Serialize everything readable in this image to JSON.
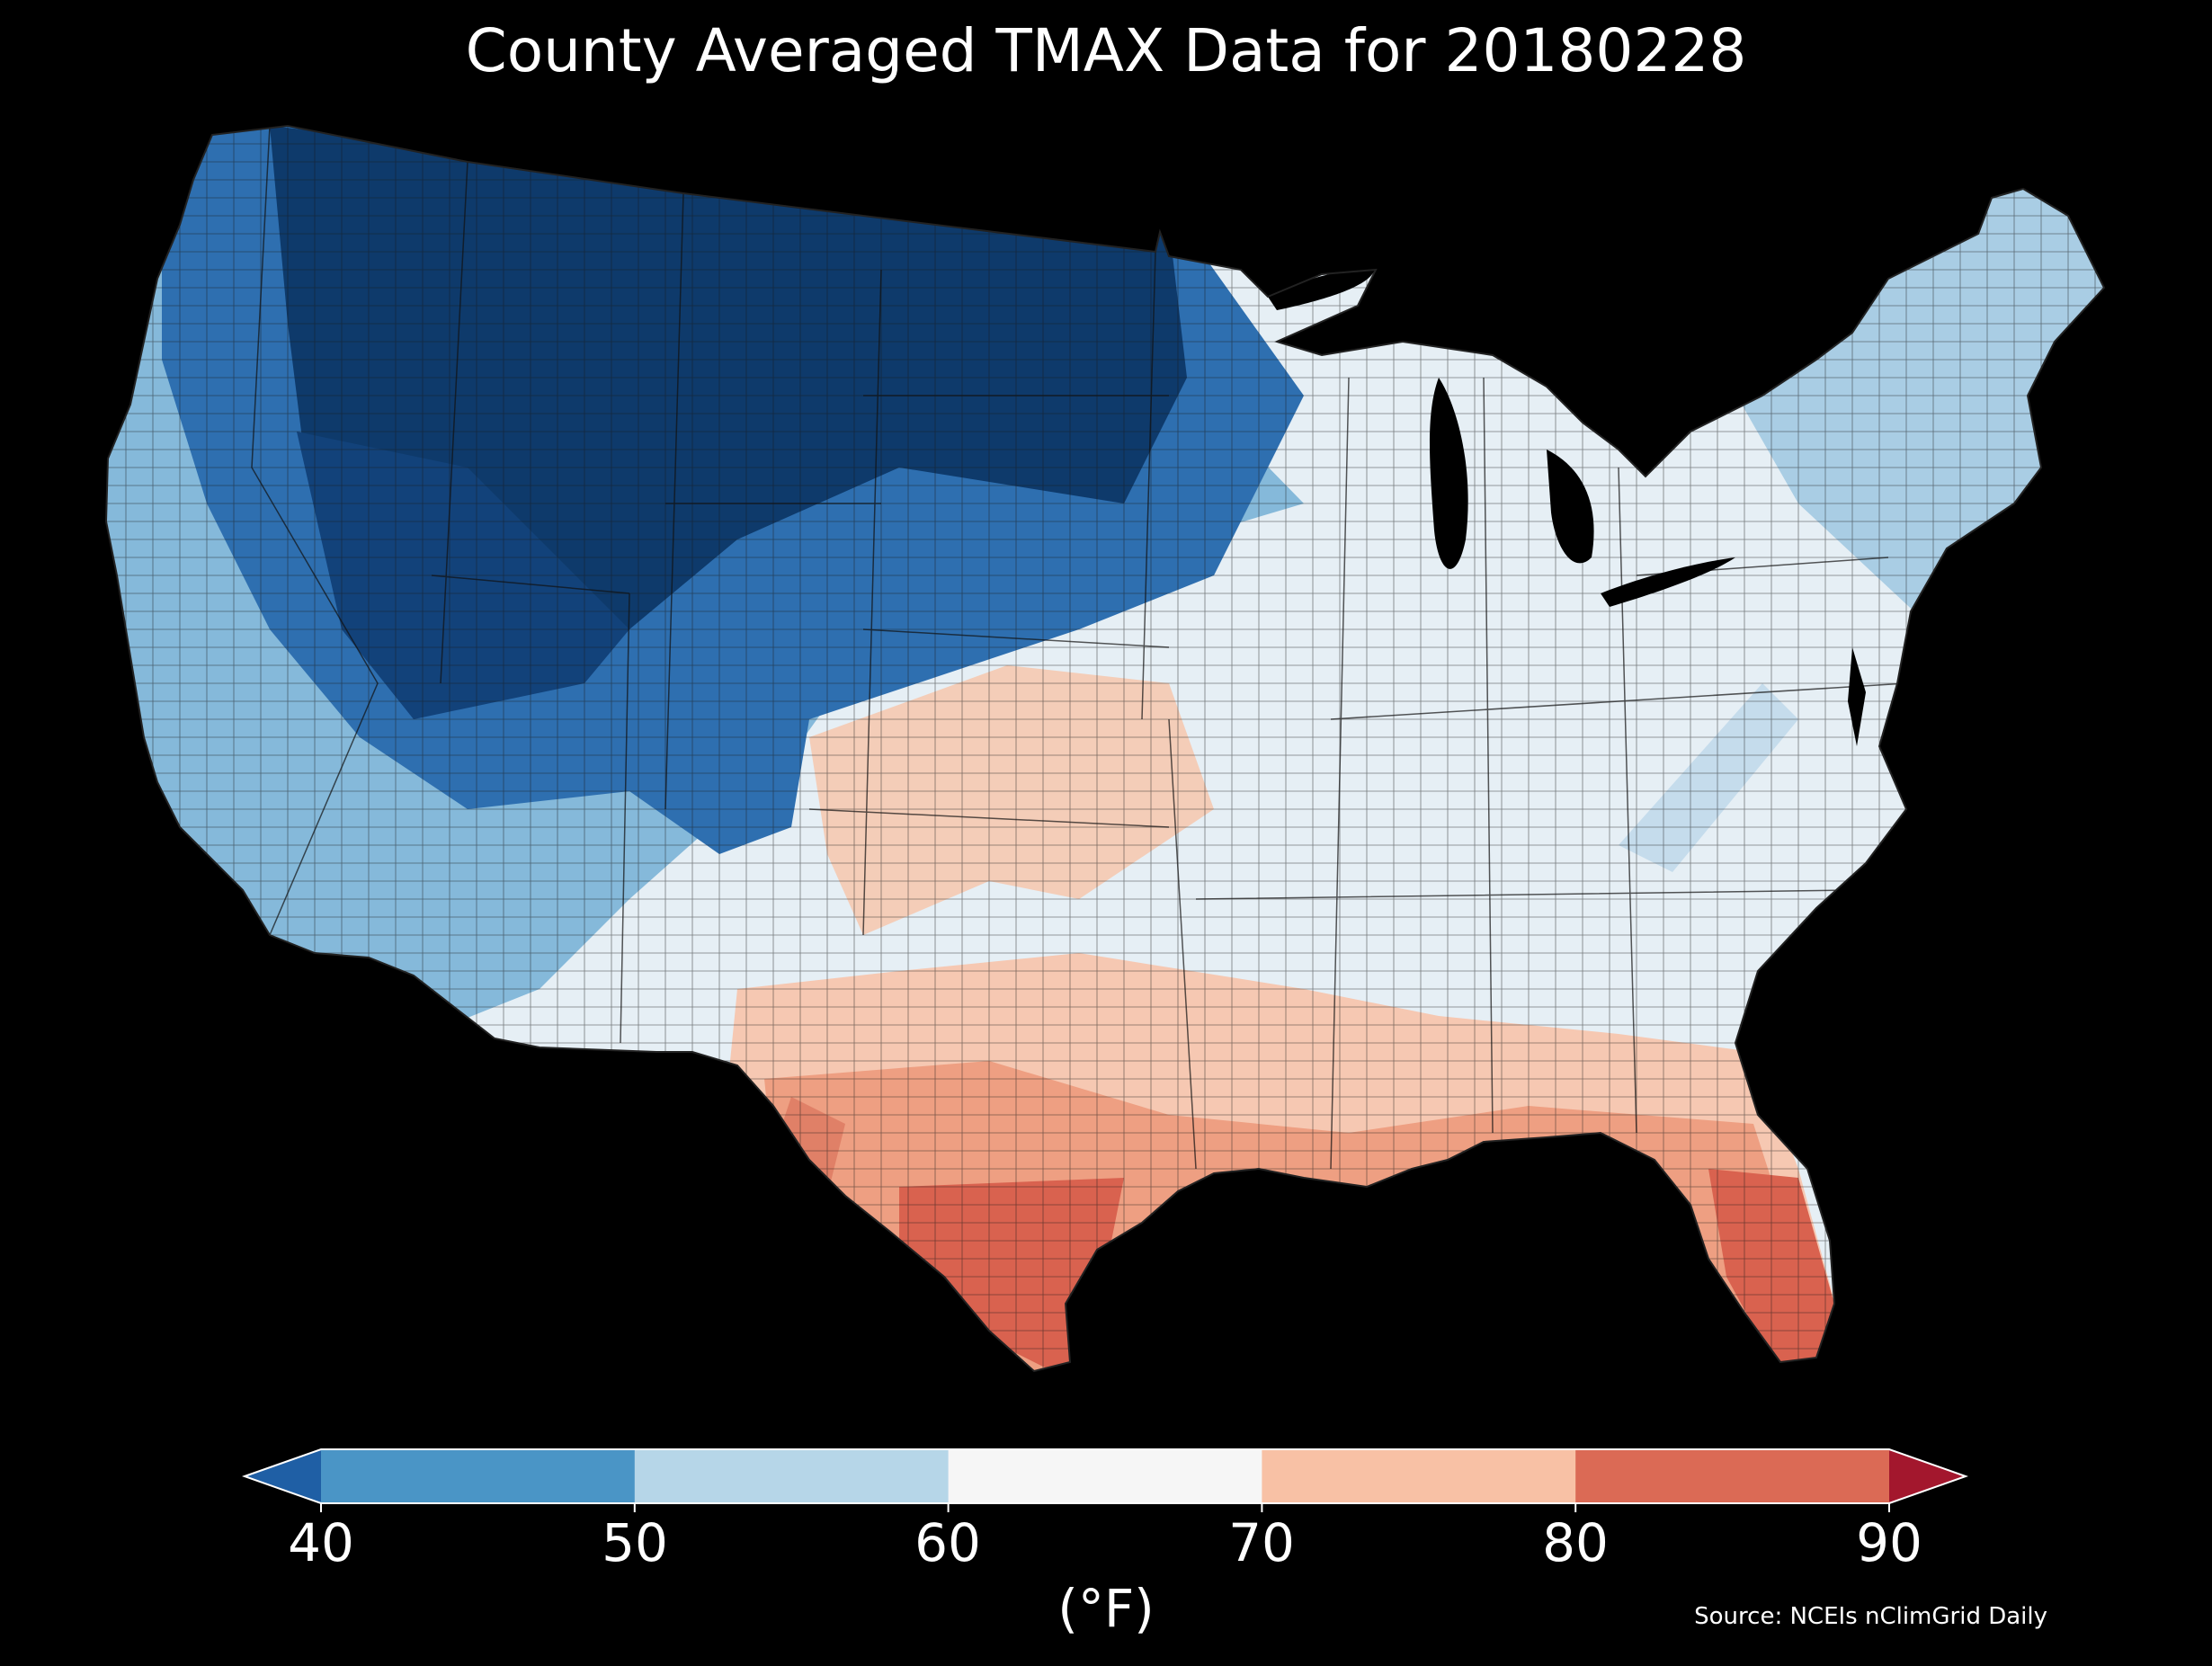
{
  "title": "County Averaged TMAX Data for 20180228",
  "colorbar": {
    "ticks": [
      "40",
      "50",
      "60",
      "70",
      "80",
      "90"
    ],
    "unit": "(°F)",
    "bins": [
      {
        "range": "<40",
        "color": "#1f5fa5"
      },
      {
        "range": "40-50",
        "color": "#4a95c6"
      },
      {
        "range": "50-60",
        "color": "#b6d6e8"
      },
      {
        "range": "60-70",
        "color": "#f6f6f6"
      },
      {
        "range": "70-80",
        "color": "#f8c1a5"
      },
      {
        "range": "80-90",
        "color": "#db6a55"
      },
      {
        "range": ">90",
        "color": "#a3172d"
      }
    ]
  },
  "source": "Source: NCEIs nClimGrid Daily",
  "colors": {
    "background": "#000000",
    "text": "#ffffff",
    "very_cold": "#0e3a6b",
    "cold": "#2e6fb0",
    "cool": "#85b9da",
    "mild": "#e6eff5",
    "warm": "#f6c8b2",
    "hot": "#d9624f"
  }
}
